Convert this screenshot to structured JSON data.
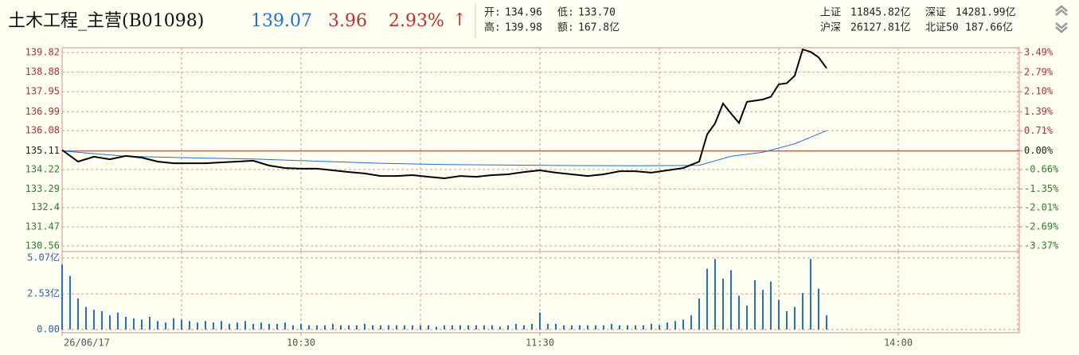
{
  "header": {
    "title": "土木工程_主营(B01098)",
    "price": "139.07",
    "change": "3.96",
    "change_pct": "2.93%",
    "arrow": "↑",
    "stats": [
      {
        "label": "开:",
        "value": "134.96"
      },
      {
        "label": "低:",
        "value": "133.70"
      },
      {
        "label": "高:",
        "value": "139.98"
      },
      {
        "label": "额:",
        "value": "167.8亿"
      }
    ],
    "indices": [
      {
        "label": "上证",
        "value": "11845.82亿"
      },
      {
        "label": "深证",
        "value": "14281.99亿"
      },
      {
        "label": "沪深",
        "value": "26127.81亿"
      },
      {
        "label": "北证50",
        "value": "187.66亿"
      }
    ]
  },
  "chart_data": [
    {
      "type": "line",
      "xlim": [
        0,
        240
      ],
      "xgrid": [
        0,
        30,
        60,
        90,
        120,
        150,
        180,
        210,
        240
      ],
      "ylim": [
        130.56,
        139.82
      ],
      "yticks": [
        139.82,
        138.88,
        137.95,
        136.99,
        136.08,
        135.11,
        134.22,
        133.29,
        132.4,
        131.47,
        130.56
      ],
      "y2lim": [
        -3.37,
        3.49
      ],
      "y2ticks": [
        {
          "value": 3.49,
          "label": "3.49%"
        },
        {
          "value": 2.79,
          "label": "2.79%"
        },
        {
          "value": 2.1,
          "label": "2.10%"
        },
        {
          "value": 1.39,
          "label": "1.39%"
        },
        {
          "value": 0.71,
          "label": "0.71%"
        },
        {
          "value": 0,
          "label": "0.00%"
        },
        {
          "value": -0.66,
          "label": "-0.66%"
        },
        {
          "value": -1.35,
          "label": "-1.35%"
        },
        {
          "value": -2.01,
          "label": "-2.01%"
        },
        {
          "value": -2.69,
          "label": "-2.69%"
        },
        {
          "value": -3.37,
          "label": "-3.37%"
        }
      ],
      "series": [
        {
          "color": "#000000",
          "x": [
            0,
            4,
            8,
            12,
            16,
            20,
            24,
            28,
            32,
            36,
            40,
            44,
            48,
            52,
            56,
            60,
            64,
            68,
            72,
            76,
            80,
            84,
            88,
            92,
            96,
            100,
            104,
            108,
            112,
            116,
            120,
            124,
            128,
            132,
            136,
            140,
            144,
            148,
            152,
            156,
            160,
            162,
            164,
            166,
            168,
            170,
            172,
            176,
            178,
            180,
            182,
            184,
            186,
            188,
            190,
            192
          ],
          "values": [
            135.15,
            134.6,
            134.83,
            134.71,
            134.87,
            134.79,
            134.6,
            134.52,
            134.52,
            134.52,
            134.56,
            134.6,
            134.64,
            134.41,
            134.29,
            134.26,
            134.26,
            134.18,
            134.1,
            134.03,
            133.91,
            133.91,
            133.95,
            133.87,
            133.8,
            133.91,
            133.87,
            133.95,
            133.99,
            134.1,
            134.18,
            134.07,
            133.99,
            133.91,
            133.99,
            134.14,
            134.14,
            134.07,
            134.18,
            134.29,
            134.6,
            135.9,
            136.43,
            137.38,
            136.9,
            136.45,
            137.46,
            137.57,
            137.7,
            138.3,
            138.35,
            138.71,
            139.97,
            139.85,
            139.59,
            139.07
          ]
        },
        {
          "color": "#1e6fd9",
          "x": [
            0,
            16,
            32,
            48,
            64,
            80,
            96,
            112,
            128,
            144,
            160,
            168,
            176,
            184,
            192
          ],
          "values": [
            135.11,
            134.85,
            134.78,
            134.72,
            134.62,
            134.52,
            134.46,
            134.43,
            134.41,
            134.4,
            134.42,
            134.85,
            135.05,
            135.45,
            136.08
          ]
        }
      ]
    },
    {
      "type": "bar",
      "xlim": [
        0,
        240
      ],
      "xgrid": [
        0,
        30,
        60,
        90,
        120,
        150,
        180,
        210,
        240
      ],
      "xticks": [
        {
          "value": 0,
          "label": "26/06/17"
        },
        {
          "value": 60,
          "label": "10:30"
        },
        {
          "value": 120,
          "label": "11:30"
        },
        {
          "value": 210,
          "label": "14:00"
        }
      ],
      "ylim": [
        0,
        5.07
      ],
      "yticks": [
        {
          "value": 5.07,
          "label": "5.07亿"
        },
        {
          "value": 2.53,
          "label": "2.53亿"
        },
        {
          "value": 0,
          "label": "0.00"
        }
      ],
      "color": "#1e6fd9",
      "x": [
        0,
        2,
        4,
        6,
        8,
        10,
        12,
        14,
        16,
        18,
        20,
        22,
        24,
        26,
        28,
        30,
        32,
        34,
        36,
        38,
        40,
        42,
        44,
        46,
        48,
        50,
        52,
        54,
        56,
        58,
        60,
        62,
        64,
        66,
        68,
        70,
        72,
        74,
        76,
        78,
        80,
        82,
        84,
        86,
        88,
        90,
        92,
        94,
        96,
        98,
        100,
        102,
        104,
        106,
        108,
        110,
        112,
        114,
        116,
        118,
        120,
        122,
        124,
        126,
        128,
        130,
        132,
        134,
        136,
        138,
        140,
        142,
        144,
        146,
        148,
        150,
        152,
        154,
        156,
        158,
        160,
        162,
        164,
        166,
        168,
        170,
        172,
        174,
        176,
        178,
        180,
        182,
        184,
        186,
        188,
        190,
        192
      ],
      "values": [
        4.6,
        3.8,
        2.2,
        1.6,
        1.4,
        1.3,
        1.0,
        1.2,
        0.9,
        0.8,
        0.7,
        0.9,
        0.6,
        0.5,
        0.8,
        0.7,
        0.6,
        0.5,
        0.6,
        0.5,
        0.6,
        0.4,
        0.5,
        0.6,
        0.4,
        0.5,
        0.4,
        0.4,
        0.5,
        0.3,
        0.4,
        0.3,
        0.3,
        0.3,
        0.4,
        0.3,
        0.3,
        0.3,
        0.4,
        0.3,
        0.3,
        0.3,
        0.3,
        0.3,
        0.3,
        0.3,
        0.3,
        0.2,
        0.3,
        0.3,
        0.3,
        0.3,
        0.3,
        0.3,
        0.3,
        0.2,
        0.3,
        0.4,
        0.3,
        0.4,
        1.2,
        0.4,
        0.4,
        0.3,
        0.3,
        0.3,
        0.3,
        0.3,
        0.3,
        0.4,
        0.3,
        0.3,
        0.3,
        0.3,
        0.4,
        0.3,
        0.5,
        0.6,
        0.7,
        1.0,
        2.2,
        4.3,
        5.0,
        3.6,
        4.2,
        2.4,
        1.7,
        3.5,
        2.8,
        3.4,
        2.1,
        1.3,
        1.6,
        2.6,
        5.0,
        2.9,
        1.0
      ]
    }
  ]
}
